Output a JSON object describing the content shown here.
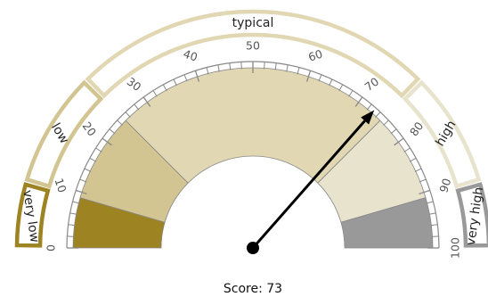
{
  "chart_data": {
    "type": "gauge",
    "min": 0,
    "max": 100,
    "major_ticks": [
      0,
      10,
      20,
      30,
      40,
      50,
      60,
      70,
      80,
      90,
      100
    ],
    "minor_tick_step": 2,
    "value": 73,
    "score_label": "Score: 73",
    "sectors": [
      {
        "from": 0,
        "to": 9,
        "color": "#9d8322"
      },
      {
        "from": 9,
        "to": 25,
        "color": "#d2c592"
      },
      {
        "from": 25,
        "to": 75,
        "color": "#e1d7b3"
      },
      {
        "from": 75,
        "to": 91,
        "color": "#e8e3cd"
      },
      {
        "from": 91,
        "to": 100,
        "color": "#999999"
      }
    ],
    "bands": [
      {
        "label": "very low",
        "from": 0,
        "to": 9,
        "color": "#9d8322",
        "fill": "#ffffff"
      },
      {
        "label": "low",
        "from": 9,
        "to": 25,
        "color": "#d2c592",
        "fill": "#ffffff"
      },
      {
        "label": "typical",
        "from": 25,
        "to": 75,
        "color": "#e1d7b3",
        "fill": "#ffffff"
      },
      {
        "label": "high",
        "from": 75,
        "to": 91,
        "color": "#e8e3cd",
        "fill": "#ffffff"
      },
      {
        "label": "very high",
        "from": 91,
        "to": 100,
        "color": "#999999",
        "fill": "#ffffff"
      }
    ],
    "needle_color": "#000000",
    "tick_color": "#888888"
  }
}
